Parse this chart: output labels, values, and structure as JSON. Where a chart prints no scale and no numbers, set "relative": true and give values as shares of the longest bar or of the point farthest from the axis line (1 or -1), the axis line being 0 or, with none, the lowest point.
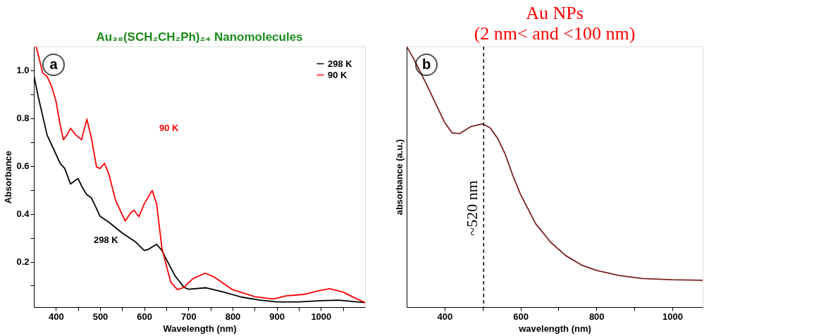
{
  "chart_data": [
    {
      "type": "line",
      "title": "Au₃₈(SCH₂CH₂Ph)₂₄ Nanomolecules",
      "xlabel": "Wavelength (nm)",
      "ylabel": "Absorbance",
      "xlim": [
        350,
        1100
      ],
      "ylim": [
        0.01,
        1.1
      ],
      "xticks": [
        400,
        {
          "value": 450,
          "label": null
        },
        500,
        {
          "value": 550,
          "label": null
        },
        600,
        {
          "value": 650,
          "label": null
        },
        700,
        {
          "value": 750,
          "label": null
        },
        800,
        {
          "value": 850,
          "label": null
        },
        900,
        {
          "value": 950,
          "label": null
        },
        1000,
        {
          "value": 1050,
          "label": null
        }
      ],
      "yticks": [
        {
          "value": 0.1,
          "label": null
        },
        0.2,
        {
          "value": 0.3,
          "label": null
        },
        0.4,
        {
          "value": 0.5,
          "label": null
        },
        0.6,
        {
          "value": 0.7,
          "label": null
        },
        0.8,
        {
          "value": 0.9,
          "label": null
        },
        {
          "value": 1.0,
          "label": "1.0"
        }
      ],
      "grid": false,
      "legend": "top right",
      "annotations": [
        "a",
        "90 K",
        "298 K"
      ],
      "series": [
        {
          "name": "298 K",
          "color": "#000000",
          "x": [
            350,
            360,
            380,
            400,
            410,
            420,
            433,
            450,
            460,
            470,
            480,
            490,
            500,
            520,
            550,
            580,
            600,
            610,
            628,
            640,
            650,
            670,
            690,
            700,
            740,
            780,
            820,
            860,
            900,
            950,
            1000,
            1040,
            1100
          ],
          "values": [
            0.98,
            0.89,
            0.73,
            0.65,
            0.61,
            0.59,
            0.525,
            0.548,
            0.51,
            0.48,
            0.468,
            0.43,
            0.39,
            0.365,
            0.32,
            0.283,
            0.247,
            0.252,
            0.273,
            0.247,
            0.21,
            0.14,
            0.093,
            0.085,
            0.091,
            0.073,
            0.052,
            0.04,
            0.032,
            0.032,
            0.037,
            0.039,
            0.029
          ]
        },
        {
          "name": "90 K",
          "color": "#ff0000",
          "x": [
            355,
            358,
            370,
            380,
            390,
            400,
            410,
            417,
            425,
            433,
            445,
            458,
            470,
            480,
            492,
            500,
            510,
            520,
            535,
            557,
            570,
            577,
            588,
            600,
            618,
            628,
            640,
            660,
            675,
            690,
            710,
            738,
            760,
            800,
            850,
            890,
            900,
            920,
            960,
            1000,
            1020,
            1050,
            1075,
            1100
          ],
          "values": [
            1.1,
            1.08,
            0.99,
            0.975,
            0.934,
            0.873,
            0.77,
            0.71,
            0.73,
            0.758,
            0.73,
            0.71,
            0.796,
            0.72,
            0.596,
            0.59,
            0.611,
            0.565,
            0.457,
            0.37,
            0.406,
            0.415,
            0.388,
            0.442,
            0.498,
            0.442,
            0.257,
            0.114,
            0.083,
            0.093,
            0.129,
            0.152,
            0.134,
            0.083,
            0.054,
            0.044,
            0.047,
            0.057,
            0.063,
            0.08,
            0.087,
            0.073,
            0.05,
            0.029
          ]
        }
      ]
    },
    {
      "type": "line",
      "title": "Au NPs",
      "subtitle": "(2 nm< and <100 nm)",
      "xlabel": "wavelength (nm)",
      "ylabel": "absorbance (a.u.)",
      "relative": true,
      "xlim": [
        300,
        1080
      ],
      "xticks": [
        400,
        {
          "value": 500,
          "label": null
        },
        600,
        {
          "value": 700,
          "label": null
        },
        800,
        {
          "value": 900,
          "label": null
        },
        1000
      ],
      "grid": false,
      "annotations": [
        "b"
      ],
      "ref_lines": [
        {
          "axis": "x",
          "value": 503,
          "label": "~520 nm",
          "color": "#000000",
          "line_style": "dashed"
        }
      ],
      "series": [
        {
          "color": "#7a2020",
          "x": [
            300,
            320,
            350,
            380,
            400,
            420,
            440,
            470,
            500,
            520,
            540,
            560,
            580,
            600,
            640,
            680,
            720,
            760,
            800,
            860,
            920,
            1000,
            1080
          ],
          "values": [
            1.0,
            0.949,
            0.862,
            0.77,
            0.709,
            0.668,
            0.666,
            0.693,
            0.703,
            0.688,
            0.647,
            0.586,
            0.504,
            0.433,
            0.32,
            0.248,
            0.197,
            0.162,
            0.141,
            0.121,
            0.11,
            0.105,
            0.103
          ]
        }
      ]
    }
  ]
}
